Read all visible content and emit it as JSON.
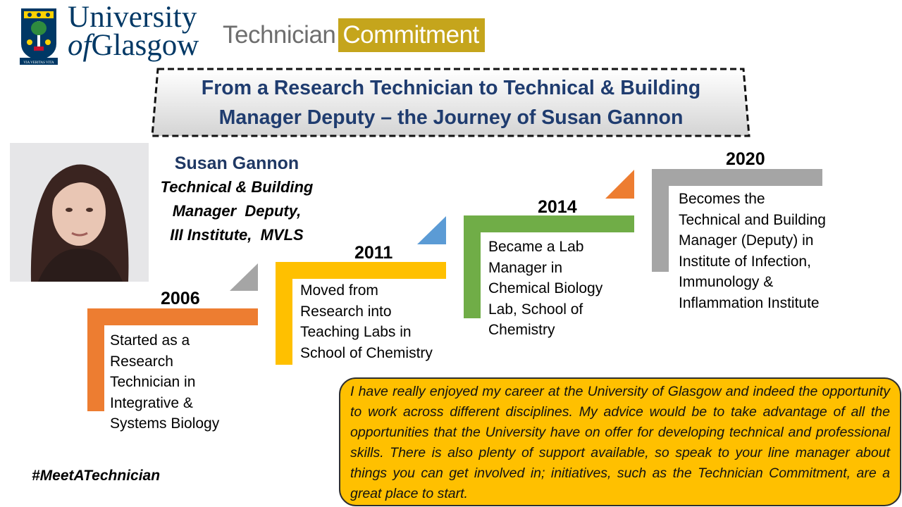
{
  "logo": {
    "university_line1": "University",
    "university_of": "of",
    "university_line2": "Glasgow",
    "motto": "VIA VERITAS VITA"
  },
  "tc_logo": {
    "part1": "Technician",
    "part2": "Commitment"
  },
  "title": {
    "line1": "From a Research Technician to Technical & Building",
    "line2": "Manager Deputy – the Journey of Susan Gannon"
  },
  "person": {
    "name": "Susan Gannon",
    "role_line1": "Technical & Building",
    "role_line2": "Manager  Deputy,",
    "role_line3": "III Institute,  MVLS"
  },
  "steps": [
    {
      "year": "2006",
      "color": "#ed7d31",
      "lines": [
        "Started as a",
        "Research",
        "Technician in",
        "Integrative &",
        "Systems Biology"
      ]
    },
    {
      "year": "2011",
      "color": "#ffc000",
      "lines": [
        "Moved from",
        "Research into",
        "Teaching Labs in",
        "School of Chemistry"
      ]
    },
    {
      "year": "2014",
      "color": "#70ad47",
      "lines": [
        "Became a Lab",
        "Manager in",
        "Chemical Biology",
        "Lab, School of",
        "Chemistry"
      ]
    },
    {
      "year": "2020",
      "color": "#a5a5a5",
      "lines": [
        "Becomes the",
        "Technical and Building",
        "Manager (Deputy) in",
        "Institute of Infection,",
        "Immunology &",
        "Inflammation Institute"
      ]
    }
  ],
  "arrow_colors": [
    "#a5a5a5",
    "#5b9bd5",
    "#ed7d31"
  ],
  "quote": "I have really enjoyed my career at the University of Glasgow and indeed the opportunity to work across different disciplines. My advice would be to take advantage of all the opportunities that the University have on offer for developing technical and professional skills. There is also plenty of support available, so speak to your line manager about things you can get involved in; initiatives, such as the Technician Commitment, are a great place to start.",
  "hashtag": "#MeetATechnician"
}
